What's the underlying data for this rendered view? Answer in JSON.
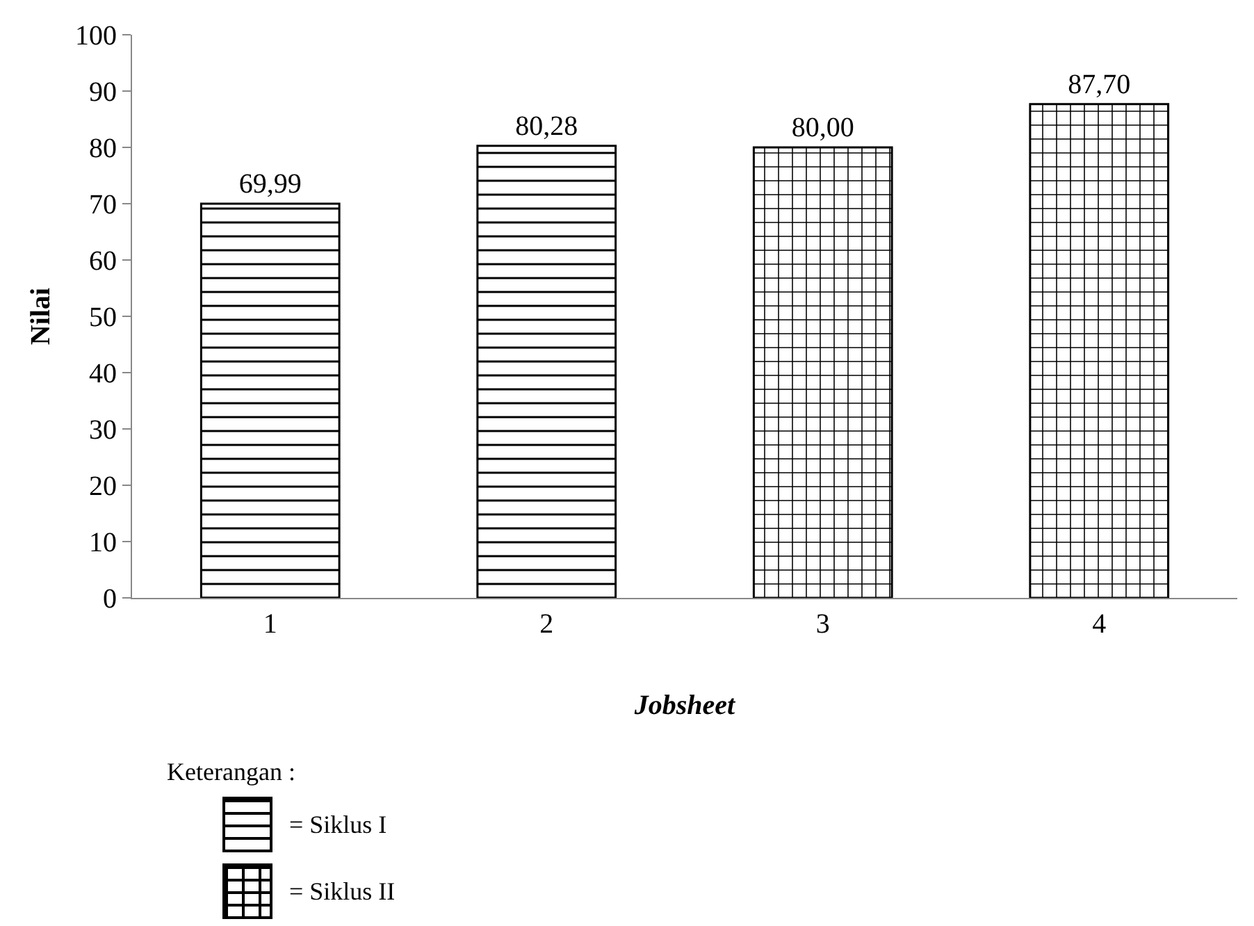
{
  "chart_data": {
    "type": "bar",
    "xlabel": "Jobsheet",
    "ylabel": "Nilai",
    "legend_title": "Keterangan :",
    "categories": [
      "1",
      "2",
      "3",
      "4"
    ],
    "series": [
      {
        "name": "= Siklus I",
        "color": "#000000",
        "values": [
          69.99,
          80.28,
          null,
          null
        ],
        "value_labels": [
          "69,99",
          "80,28",
          null,
          null
        ]
      },
      {
        "name": "= Siklus II",
        "color": "#000000",
        "values": [
          null,
          null,
          80.0,
          87.7
        ],
        "value_labels": [
          null,
          null,
          "80,00",
          "87,70"
        ]
      }
    ],
    "ylim": [
      0,
      100
    ],
    "yticks": [
      0,
      10,
      20,
      30,
      40,
      50,
      60,
      70,
      80,
      90,
      100
    ],
    "grid": false,
    "legend": "bottom left"
  }
}
